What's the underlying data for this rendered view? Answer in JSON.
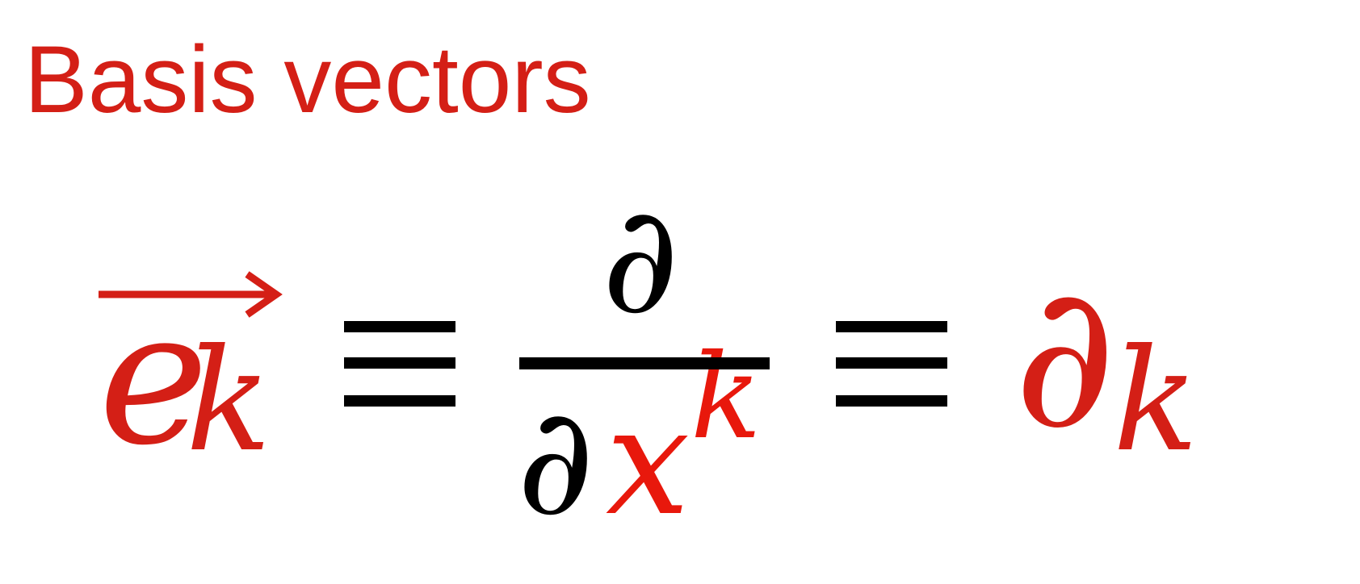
{
  "slide": {
    "title": "Basis vectors"
  },
  "equation": {
    "vector_base": "e",
    "vector_subscript": "k",
    "numerator": "∂",
    "denominator_partial": "∂",
    "denominator_variable": "x",
    "denominator_superscript": "k",
    "rhs_partial": "∂",
    "rhs_subscript": "k"
  },
  "colors": {
    "accent_red": "#d41f16",
    "text_black": "#000000"
  }
}
